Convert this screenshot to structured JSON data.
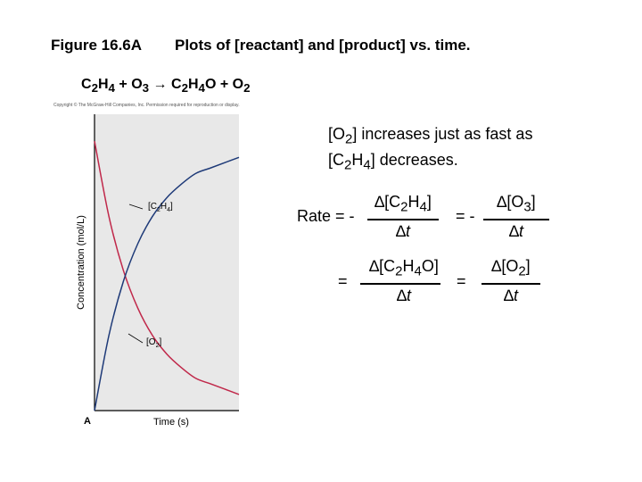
{
  "figure_label": "Figure 16.6A",
  "figure_title": "Plots of [reactant] and [product] vs. time.",
  "equation": {
    "C": "C",
    "H": "H",
    "O": "O",
    "two": "2",
    "three": "3",
    "four": "4",
    "plus": "+",
    "arrow": "→"
  },
  "copyright": "Copyright © The McGraw-Hill Companies, Inc. Permission required for reproduction or display.",
  "note": {
    "bracket_open": "[O",
    "sub_2": "2",
    "line1_rest": "] increases just as fast as",
    "line2_open": "[C",
    "sub_2b": "2",
    "line2_mid": "H",
    "sub_4": "4",
    "line2_end": "] decreases."
  },
  "rate": {
    "rate_label": "Rate = -",
    "eq_minus": "= -",
    "eq1": "=",
    "eq2": "=",
    "delta": "∆",
    "t": "t",
    "term1_a": "[C",
    "term1_b": "H",
    "term1_c": "]",
    "term2_a": "[O",
    "term2_c": "]",
    "term3_a": "[C",
    "term3_b": "H",
    "term3_c": "O]",
    "term4_a": "[O",
    "term4_c": "]",
    "sub2": "2",
    "sub3": "3",
    "sub4": "4"
  },
  "colors": {
    "plot_background": "#e8e8e8",
    "reactant_curve": "#c0284a",
    "product_curve": "#1e3a78"
  },
  "chart_data": {
    "type": "line",
    "ylabel": "Concentration (mol/L)",
    "xlabel": "Time (s)",
    "origin_label": "A",
    "series": [
      {
        "name": "[C2H4]",
        "label_parts": [
          "[C",
          "2",
          "H",
          "4",
          "]"
        ],
        "x": [
          0,
          1,
          2,
          3,
          4,
          5,
          6,
          7,
          8,
          9,
          10
        ],
        "values": [
          1.0,
          0.72,
          0.52,
          0.38,
          0.28,
          0.21,
          0.16,
          0.12,
          0.1,
          0.08,
          0.06
        ]
      },
      {
        "name": "[O2]",
        "label_parts": [
          "[O",
          "2",
          "]"
        ],
        "x": [
          0,
          1,
          2,
          3,
          4,
          5,
          6,
          7,
          8,
          9,
          10
        ],
        "values": [
          0.0,
          0.28,
          0.48,
          0.62,
          0.72,
          0.79,
          0.84,
          0.88,
          0.9,
          0.92,
          0.94
        ]
      }
    ],
    "xlim": [
      0,
      10
    ],
    "ylim": [
      0,
      1.1
    ],
    "grid": false,
    "legend": "inline labels with leader lines"
  }
}
